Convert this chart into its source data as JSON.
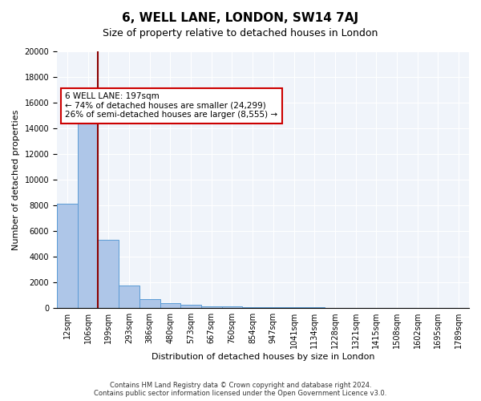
{
  "title": "6, WELL LANE, LONDON, SW14 7AJ",
  "subtitle": "Size of property relative to detached houses in London",
  "xlabel": "Distribution of detached houses by size in London",
  "ylabel": "Number of detached properties",
  "bar_values": [
    8100,
    16600,
    5300,
    1750,
    700,
    380,
    250,
    150,
    100,
    80,
    60,
    50,
    40,
    30,
    20,
    15,
    10,
    8,
    5,
    3
  ],
  "bin_labels": [
    "12sqm",
    "106sqm",
    "199sqm",
    "293sqm",
    "386sqm",
    "480sqm",
    "573sqm",
    "667sqm",
    "760sqm",
    "854sqm",
    "947sqm",
    "1041sqm",
    "1134sqm",
    "1228sqm",
    "1321sqm",
    "1415sqm",
    "1508sqm",
    "1602sqm",
    "1695sqm",
    "1789sqm"
  ],
  "bar_color": "#aec6e8",
  "bar_edge_color": "#5b9bd5",
  "vline_color": "#8b0000",
  "vline_position": 1.5,
  "annotation_text": "6 WELL LANE: 197sqm\n← 74% of detached houses are smaller (24,299)\n26% of semi-detached houses are larger (8,555) →",
  "annotation_box_color": "#ffffff",
  "annotation_box_edge": "#cc0000",
  "ylim": [
    0,
    20000
  ],
  "yticks": [
    0,
    2000,
    4000,
    6000,
    8000,
    10000,
    12000,
    14000,
    16000,
    18000,
    20000
  ],
  "background_color": "#f0f4fa",
  "footer_text": "Contains HM Land Registry data © Crown copyright and database right 2024.\nContains public sector information licensed under the Open Government Licence v3.0.",
  "title_fontsize": 11,
  "subtitle_fontsize": 9,
  "axis_label_fontsize": 8,
  "tick_fontsize": 7
}
